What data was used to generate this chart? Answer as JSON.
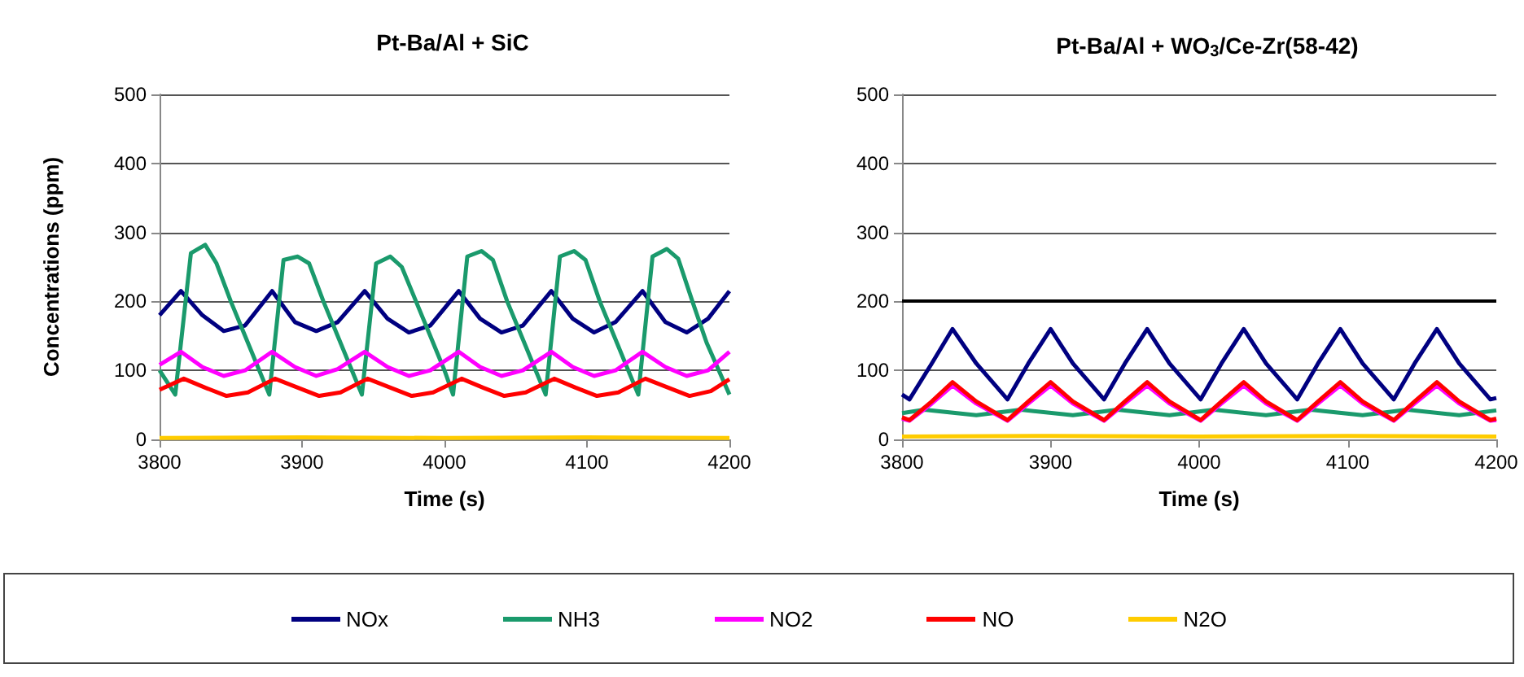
{
  "chart_data": [
    {
      "type": "line",
      "title": "Pt-Ba/Al + SiC",
      "xlabel": "Time (s)",
      "ylabel": "Concentrations (ppm)",
      "xlim": [
        3800,
        4200
      ],
      "xticks": [
        3800,
        3900,
        4000,
        4100,
        4200
      ],
      "ylim": [
        0,
        500
      ],
      "yticks": [
        0,
        100,
        200,
        300,
        400,
        500
      ],
      "grid": "y",
      "legend": "bottom",
      "marker": "none",
      "line_style": "solid",
      "series": [
        {
          "name": "NOx",
          "color": "#000080",
          "x": [
            3800,
            3815,
            3830,
            3845,
            3860,
            3879,
            3895,
            3910,
            3925,
            3944,
            3960,
            3975,
            3990,
            4010,
            4025,
            4040,
            4055,
            4075,
            4090,
            4105,
            4120,
            4139,
            4155,
            4170,
            4185,
            4200
          ],
          "values": [
            180,
            215,
            180,
            157,
            165,
            215,
            170,
            157,
            170,
            215,
            175,
            155,
            165,
            215,
            175,
            155,
            165,
            215,
            175,
            155,
            170,
            215,
            170,
            155,
            175,
            215
          ]
        },
        {
          "name": "NH3",
          "color": "#1a9a6c",
          "x": [
            3800,
            3811,
            3822,
            3832,
            3840,
            3850,
            3860,
            3870,
            3877,
            3887,
            3897,
            3905,
            3915,
            3925,
            3935,
            3942,
            3952,
            3962,
            3970,
            3980,
            3990,
            4000,
            4006,
            4016,
            4026,
            4034,
            4044,
            4054,
            4064,
            4071,
            4081,
            4091,
            4099,
            4109,
            4119,
            4129,
            4136,
            4146,
            4156,
            4164,
            4174,
            4184,
            4200
          ],
          "values": [
            100,
            65,
            270,
            282,
            255,
            200,
            150,
            100,
            65,
            260,
            265,
            255,
            200,
            150,
            100,
            65,
            255,
            265,
            250,
            200,
            150,
            100,
            65,
            265,
            273,
            260,
            200,
            150,
            100,
            65,
            265,
            273,
            260,
            200,
            150,
            100,
            65,
            265,
            276,
            262,
            200,
            140,
            65
          ]
        },
        {
          "name": "NO2",
          "color": "#ff00ff",
          "x": [
            3800,
            3815,
            3830,
            3845,
            3860,
            3879,
            3895,
            3910,
            3925,
            3944,
            3960,
            3975,
            3990,
            4010,
            4025,
            4040,
            4055,
            4075,
            4090,
            4105,
            4120,
            4139,
            4155,
            4170,
            4185,
            4200
          ],
          "values": [
            108,
            127,
            105,
            92,
            100,
            127,
            105,
            92,
            102,
            127,
            105,
            92,
            100,
            127,
            105,
            92,
            100,
            127,
            105,
            92,
            100,
            127,
            105,
            92,
            100,
            127
          ]
        },
        {
          "name": "NO",
          "color": "#ff0000",
          "x": [
            3800,
            3817,
            3832,
            3847,
            3862,
            3881,
            3897,
            3912,
            3927,
            3946,
            3962,
            3977,
            3992,
            4012,
            4027,
            4042,
            4057,
            4077,
            4092,
            4107,
            4122,
            4141,
            4157,
            4172,
            4187,
            4200
          ],
          "values": [
            72,
            88,
            75,
            63,
            68,
            88,
            75,
            63,
            68,
            88,
            75,
            63,
            68,
            88,
            75,
            63,
            68,
            88,
            75,
            63,
            68,
            88,
            75,
            63,
            70,
            87
          ]
        },
        {
          "name": "N2O",
          "color": "#ffcc00",
          "x": [
            3800,
            3900,
            4000,
            4100,
            4200
          ],
          "values": [
            2,
            3,
            2,
            3,
            2
          ]
        }
      ]
    },
    {
      "type": "line",
      "title": "Pt-Ba/Al + WO$_{3}$/Ce-Zr(58-42)",
      "xlabel": "Time (s)",
      "xlim": [
        3800,
        4200
      ],
      "xticks": [
        3800,
        3900,
        4000,
        4100,
        4200
      ],
      "ylim": [
        0,
        500
      ],
      "yticks": [
        0,
        100,
        200,
        300,
        400,
        500
      ],
      "grid": "y",
      "legend": "bottom",
      "marker": "none",
      "line_style": "solid",
      "ref_lines": [
        {
          "axis": "y",
          "value": 200,
          "color": "#000000"
        }
      ],
      "series": [
        {
          "name": "NOx",
          "color": "#000080",
          "x": [
            3800,
            3805,
            3820,
            3834,
            3850,
            3871,
            3885,
            3900,
            3915,
            3936,
            3950,
            3965,
            3980,
            4001,
            4015,
            4030,
            4045,
            4066,
            4080,
            4095,
            4110,
            4131,
            4145,
            4160,
            4175,
            4196,
            4200
          ],
          "values": [
            65,
            58,
            110,
            160,
            110,
            58,
            110,
            160,
            110,
            58,
            110,
            160,
            110,
            58,
            110,
            160,
            110,
            58,
            110,
            160,
            110,
            58,
            110,
            160,
            110,
            58,
            60
          ]
        },
        {
          "name": "NH3",
          "color": "#1a9a6c",
          "x": [
            3800,
            3815,
            3850,
            3880,
            3915,
            3945,
            3980,
            4010,
            4045,
            4075,
            4110,
            4140,
            4175,
            4200
          ],
          "values": [
            38,
            43,
            35,
            43,
            35,
            43,
            35,
            43,
            35,
            43,
            35,
            43,
            35,
            42
          ]
        },
        {
          "name": "NO2",
          "color": "#ff00ff",
          "x": [
            3800,
            3805,
            3820,
            3834,
            3850,
            3871,
            3885,
            3900,
            3915,
            3936,
            3950,
            3965,
            3980,
            4001,
            4015,
            4030,
            4045,
            4066,
            4080,
            4095,
            4110,
            4131,
            4145,
            4160,
            4175,
            4196,
            4200
          ],
          "values": [
            30,
            27,
            52,
            78,
            52,
            27,
            52,
            78,
            52,
            27,
            52,
            78,
            52,
            27,
            52,
            78,
            52,
            27,
            52,
            78,
            52,
            27,
            52,
            78,
            52,
            27,
            28
          ]
        },
        {
          "name": "NO",
          "color": "#ff0000",
          "x": [
            3800,
            3805,
            3820,
            3834,
            3850,
            3871,
            3885,
            3900,
            3915,
            3936,
            3950,
            3965,
            3980,
            4001,
            4015,
            4030,
            4045,
            4066,
            4080,
            4095,
            4110,
            4131,
            4145,
            4160,
            4175,
            4196,
            4200
          ],
          "values": [
            32,
            28,
            55,
            83,
            55,
            28,
            55,
            83,
            55,
            28,
            55,
            83,
            55,
            28,
            55,
            83,
            55,
            28,
            55,
            83,
            55,
            28,
            55,
            83,
            55,
            28,
            30
          ]
        },
        {
          "name": "N2O",
          "color": "#ffcc00",
          "x": [
            3800,
            3900,
            4000,
            4100,
            4200
          ],
          "values": [
            4,
            5,
            4,
            5,
            4
          ]
        }
      ]
    }
  ]
}
